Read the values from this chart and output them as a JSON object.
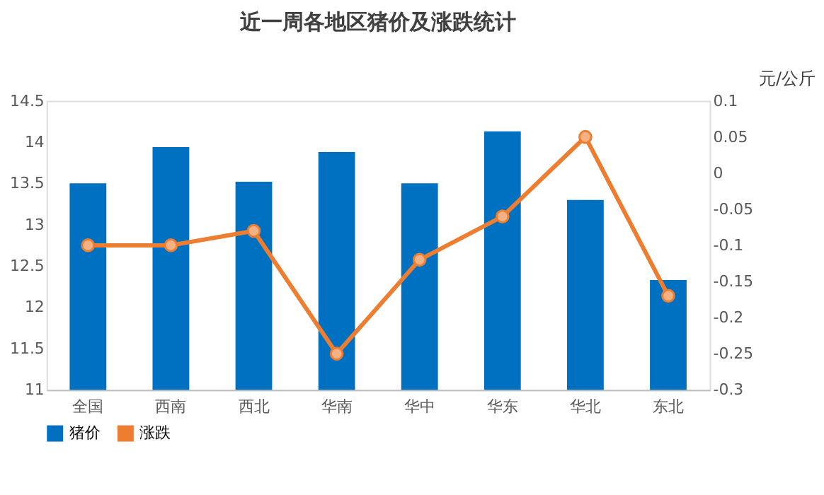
{
  "chart_data": {
    "type": "bar",
    "title": "近一周各地区猪价及涨跌统计",
    "annotations": [
      "元/公斤"
    ],
    "categories": [
      "全国",
      "西南",
      "西北",
      "华南",
      "华中",
      "华东",
      "华北",
      "东北"
    ],
    "series": [
      {
        "name": "猪价",
        "color": "#0070c0",
        "values": [
          13.5,
          13.94,
          13.52,
          13.88,
          13.5,
          14.13,
          13.3,
          12.33
        ]
      },
      {
        "name": "涨跌",
        "type": "line",
        "axis": "y2",
        "color": "#ed7d31",
        "marker": "circle",
        "values": [
          -0.1,
          -0.1,
          -0.08,
          -0.25,
          -0.12,
          -0.06,
          0.05,
          -0.17
        ]
      }
    ],
    "ylim": [
      11,
      14.5
    ],
    "yticks": [
      11,
      11.5,
      12,
      12.5,
      13,
      13.5,
      14,
      14.5
    ],
    "y2lim": [
      -0.3,
      0.1
    ],
    "y2ticks": [
      -0.3,
      -0.25,
      -0.2,
      -0.15,
      -0.1,
      -0.05,
      0,
      0.05,
      0.1
    ],
    "grid": false,
    "legend": "bottom"
  }
}
